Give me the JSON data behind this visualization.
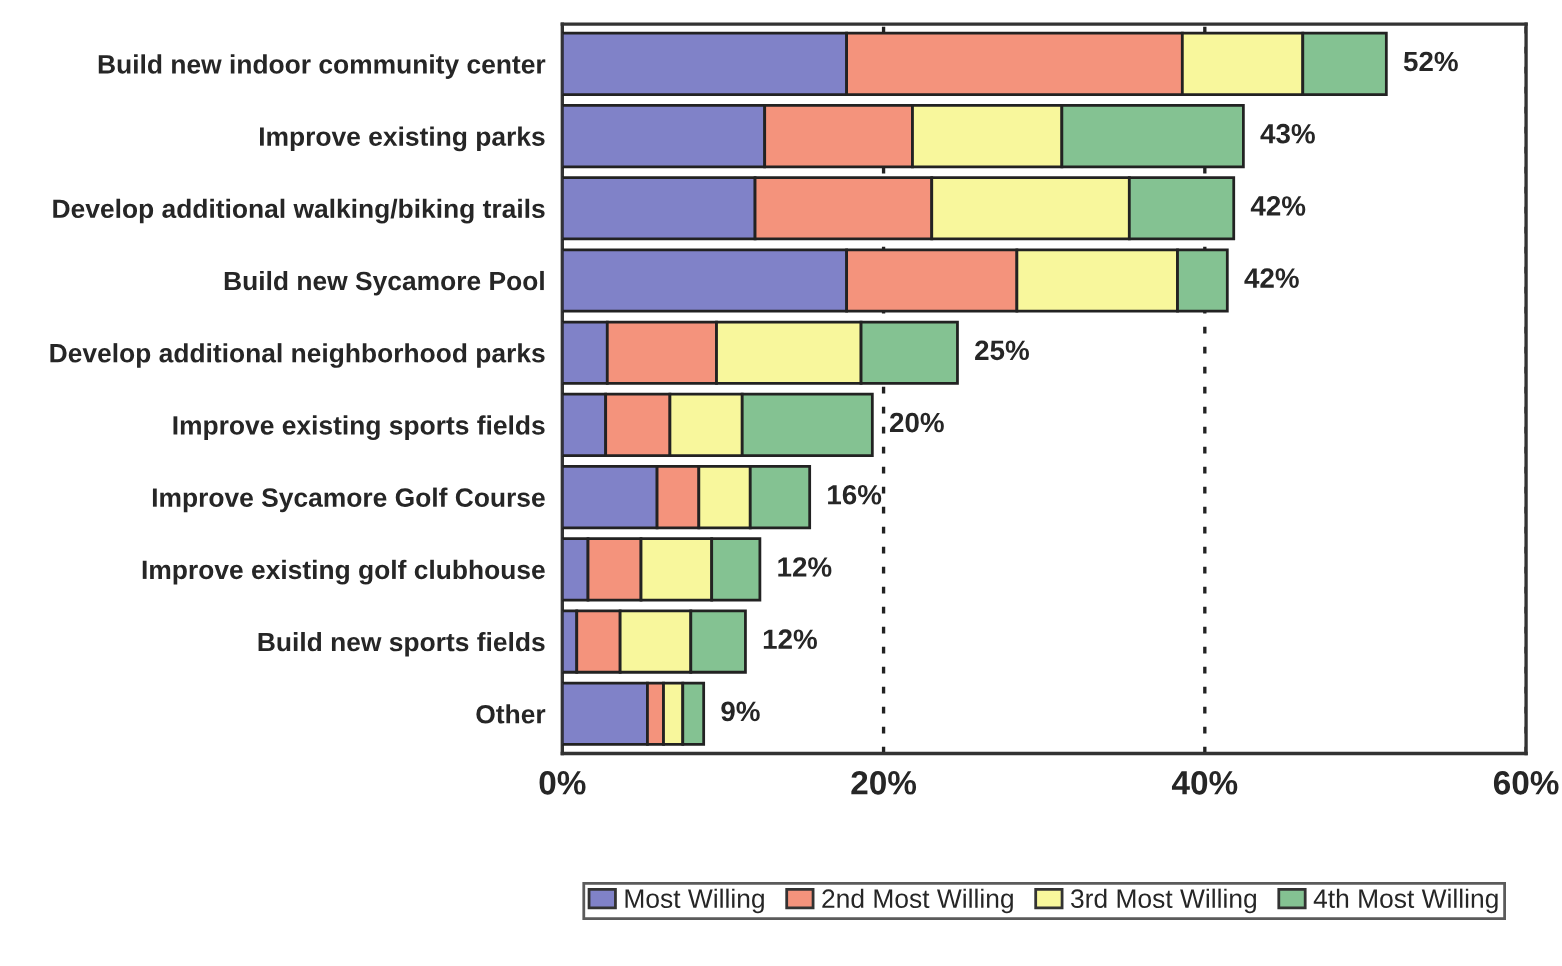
{
  "chart_data": {
    "type": "bar",
    "orientation": "horizontal",
    "stacked": true,
    "categories": [
      "Build new indoor community center",
      "Improve existing parks",
      "Develop additional walking/biking trails",
      "Build new Sycamore Pool",
      "Develop additional neighborhood parks",
      "Improve existing sports fields",
      "Improve Sycamore Golf Course",
      "Improve existing golf clubhouse",
      "Build new sports fields",
      "Other"
    ],
    "series": [
      {
        "name": "Most Willing",
        "color": "#8082c8",
        "values": [
          17.7,
          12.6,
          12.0,
          17.7,
          2.8,
          2.7,
          5.9,
          1.6,
          0.9,
          5.3
        ]
      },
      {
        "name": "2nd Most Willing",
        "color": "#f4937c",
        "values": [
          20.9,
          9.2,
          11.0,
          10.6,
          6.8,
          4.0,
          2.6,
          3.3,
          2.7,
          1.0
        ]
      },
      {
        "name": "3rd Most Willing",
        "color": "#f8f79c",
        "values": [
          7.5,
          9.3,
          12.3,
          10.0,
          9.0,
          4.5,
          3.2,
          4.4,
          4.4,
          1.2
        ]
      },
      {
        "name": "4th Most Willing",
        "color": "#84c292",
        "values": [
          5.2,
          11.3,
          6.5,
          3.1,
          6.0,
          8.1,
          3.7,
          3.0,
          3.4,
          1.3
        ]
      }
    ],
    "totals": [
      "52%",
      "43%",
      "42%",
      "42%",
      "25%",
      "20%",
      "16%",
      "12%",
      "12%",
      "9%"
    ],
    "xlim": [
      0,
      60
    ],
    "xticks": [
      {
        "value": 0,
        "label": "0%"
      },
      {
        "value": 20,
        "label": "20%"
      },
      {
        "value": 40,
        "label": "40%"
      },
      {
        "value": 60,
        "label": "60%"
      }
    ],
    "grid": "x",
    "legend": "bottom"
  }
}
